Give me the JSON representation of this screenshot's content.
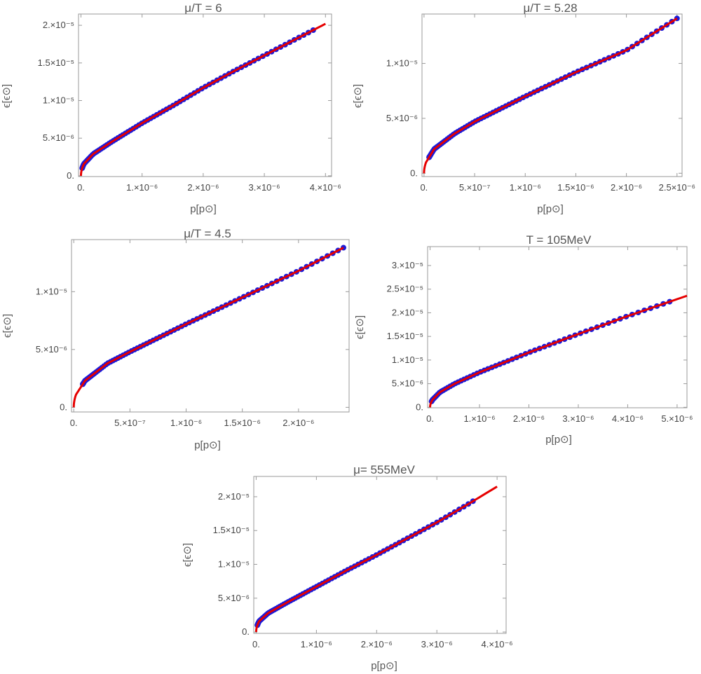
{
  "colors": {
    "data_points": "#1a1ad9",
    "fit_line": "#e60000",
    "frame": "#9a9a9a",
    "text": "#555555"
  },
  "chart_data": [
    {
      "type": "scatter",
      "title": "μ/T = 6",
      "xlabel": "p[p⊙]",
      "ylabel": "ϵ[ϵ⊙]",
      "xlim": [
        -4e-08,
        4.1e-06
      ],
      "ylim": [
        -1e-07,
        2.15e-05
      ],
      "xticks": [
        {
          "value": 0,
          "label": "0."
        },
        {
          "value": 1e-06,
          "label": "1.×10⁻⁶"
        },
        {
          "value": 2e-06,
          "label": "2.×10⁻⁶"
        },
        {
          "value": 3e-06,
          "label": "3.×10⁻⁶"
        },
        {
          "value": 4e-06,
          "label": "4.×10⁻⁶"
        }
      ],
      "yticks": [
        {
          "value": 0,
          "label": "0."
        },
        {
          "value": 5e-06,
          "label": "5.×10⁻⁶"
        },
        {
          "value": 1e-05,
          "label": "1.×10⁻⁵"
        },
        {
          "value": 1.5e-05,
          "label": "1.5×10⁻⁵"
        },
        {
          "value": 2e-05,
          "label": "2.×10⁻⁵"
        }
      ],
      "fit": {
        "x": [
          0,
          5e-08,
          2e-07,
          5e-07,
          1e-06,
          1.5e-06,
          2e-06,
          2.5e-06,
          3e-06,
          3.5e-06,
          4e-06
        ],
        "y": [
          0,
          1.6e-06,
          2.9e-06,
          4.5e-06,
          7e-06,
          9.3e-06,
          1.17e-05,
          1.39e-05,
          1.6e-05,
          1.81e-05,
          2.02e-05
        ]
      },
      "points": {
        "x_min": 2e-08,
        "x_max": 3.8e-06,
        "count": 78
      }
    },
    {
      "type": "scatter",
      "title": "μ/T = 5.28",
      "xlabel": "p[p⊙]",
      "ylabel": "ϵ[ϵ⊙]",
      "xlim": [
        -2e-08,
        2.55e-06
      ],
      "ylim": [
        -3e-07,
        1.45e-05
      ],
      "xticks": [
        {
          "value": 0,
          "label": "0."
        },
        {
          "value": 5e-07,
          "label": "5.×10⁻⁷"
        },
        {
          "value": 1e-06,
          "label": "1.×10⁻⁶"
        },
        {
          "value": 1.5e-06,
          "label": "1.5×10⁻⁶"
        },
        {
          "value": 2e-06,
          "label": "2.×10⁻⁶"
        },
        {
          "value": 2.5e-06,
          "label": "2.5×10⁻⁶"
        }
      ],
      "yticks": [
        {
          "value": 0,
          "label": "0."
        },
        {
          "value": 5e-06,
          "label": "5.×10⁻⁶"
        },
        {
          "value": 1e-05,
          "label": "1.×10⁻⁵"
        }
      ],
      "fit": {
        "x": [
          0,
          2e-08,
          1e-07,
          3e-07,
          5e-07,
          1e-06,
          1.5e-06,
          2e-06,
          2.5e-06
        ],
        "y": [
          0,
          1e-06,
          2.2e-06,
          3.6e-06,
          4.7e-06,
          7e-06,
          9.2e-06,
          1.12e-05,
          1.41e-05
        ]
      },
      "points": {
        "x_min": 5e-08,
        "x_max": 2.5e-06,
        "count": 78
      }
    },
    {
      "type": "scatter",
      "title": "μ/T = 4.5",
      "xlabel": "p[p⊙]",
      "ylabel": "ϵ[ϵ⊙]",
      "xlim": [
        -2e-08,
        2.45e-06
      ],
      "ylim": [
        -4e-07,
        1.45e-05
      ],
      "xticks": [
        {
          "value": 0,
          "label": "0."
        },
        {
          "value": 5e-07,
          "label": "5.×10⁻⁷"
        },
        {
          "value": 1e-06,
          "label": "1.×10⁻⁶"
        },
        {
          "value": 1.5e-06,
          "label": "1.5×10⁻⁶"
        },
        {
          "value": 2e-06,
          "label": "2.×10⁻⁶"
        }
      ],
      "yticks": [
        {
          "value": 0,
          "label": "0."
        },
        {
          "value": 5e-06,
          "label": "5.×10⁻⁶"
        },
        {
          "value": 1e-05,
          "label": "1.×10⁻⁵"
        }
      ],
      "fit": {
        "x": [
          0,
          2e-08,
          1e-07,
          3e-07,
          5e-07,
          1e-06,
          1.5e-06,
          2e-06,
          2.4e-06
        ],
        "y": [
          0,
          1.1e-06,
          2.3e-06,
          3.8e-06,
          4.8e-06,
          7.2e-06,
          9.5e-06,
          1.18e-05,
          1.38e-05
        ]
      },
      "points": {
        "x_min": 8e-08,
        "x_max": 2.4e-06,
        "count": 78
      }
    },
    {
      "type": "scatter",
      "title": "T = 105MeV",
      "xlabel": "p[p⊙]",
      "ylabel": "ϵ[ϵ⊙]",
      "xlim": [
        -5e-08,
        5.2e-06
      ],
      "ylim": [
        -1e-07,
        3.4e-05
      ],
      "xticks": [
        {
          "value": 0,
          "label": "0."
        },
        {
          "value": 1e-06,
          "label": "1.×10⁻⁶"
        },
        {
          "value": 2e-06,
          "label": "2.×10⁻⁶"
        },
        {
          "value": 3e-06,
          "label": "3.×10⁻⁶"
        },
        {
          "value": 4e-06,
          "label": "4.×10⁻⁶"
        },
        {
          "value": 5e-06,
          "label": "5.×10⁻⁶"
        }
      ],
      "yticks": [
        {
          "value": 0,
          "label": "0."
        },
        {
          "value": 5e-06,
          "label": "5.×10⁻⁶"
        },
        {
          "value": 1e-05,
          "label": "1.×10⁻⁵"
        },
        {
          "value": 1.5e-05,
          "label": "1.5×10⁻⁵"
        },
        {
          "value": 2e-05,
          "label": "2.×10⁻⁵"
        },
        {
          "value": 2.5e-05,
          "label": "2.5×10⁻⁵"
        },
        {
          "value": 3e-05,
          "label": "3.×10⁻⁵"
        }
      ],
      "fit": {
        "x": [
          0,
          5e-08,
          2e-07,
          5e-07,
          1e-06,
          1.5e-06,
          2e-06,
          3e-06,
          4e-06,
          5.2e-06
        ],
        "y": [
          0,
          1.6e-06,
          3.2e-06,
          5e-06,
          7.4e-06,
          9.5e-06,
          1.16e-05,
          1.55e-05,
          1.93e-05,
          2.36e-05
        ]
      },
      "points": {
        "x_min": 3e-08,
        "x_max": 4.85e-06,
        "count": 60
      }
    },
    {
      "type": "scatter",
      "title": "μ= 555MeV",
      "xlabel": "p[p⊙]",
      "ylabel": "ϵ[ϵ⊙]",
      "xlim": [
        -4e-08,
        4.15e-06
      ],
      "ylim": [
        -2e-07,
        2.3e-05
      ],
      "xticks": [
        {
          "value": 0,
          "label": "0."
        },
        {
          "value": 1e-06,
          "label": "1.×10⁻⁶"
        },
        {
          "value": 2e-06,
          "label": "2.×10⁻⁶"
        },
        {
          "value": 3e-06,
          "label": "3.×10⁻⁶"
        },
        {
          "value": 4e-06,
          "label": "4.×10⁻⁶"
        }
      ],
      "yticks": [
        {
          "value": 0,
          "label": "0."
        },
        {
          "value": 5e-06,
          "label": "5.×10⁻⁶"
        },
        {
          "value": 1e-05,
          "label": "1.×10⁻⁵"
        },
        {
          "value": 1.5e-05,
          "label": "1.5×10⁻⁵"
        },
        {
          "value": 2e-05,
          "label": "2.×10⁻⁵"
        }
      ],
      "fit": {
        "x": [
          0,
          5e-08,
          2e-07,
          5e-07,
          1e-06,
          1.5e-06,
          2e-06,
          2.5e-06,
          3e-06,
          3.5e-06,
          4e-06
        ],
        "y": [
          0,
          1.6e-06,
          2.8e-06,
          4.3e-06,
          6.7e-06,
          9.1e-06,
          1.14e-05,
          1.38e-05,
          1.62e-05,
          1.88e-05,
          2.15e-05
        ]
      },
      "points": {
        "x_min": 2e-08,
        "x_max": 3.6e-06,
        "count": 75
      }
    }
  ]
}
